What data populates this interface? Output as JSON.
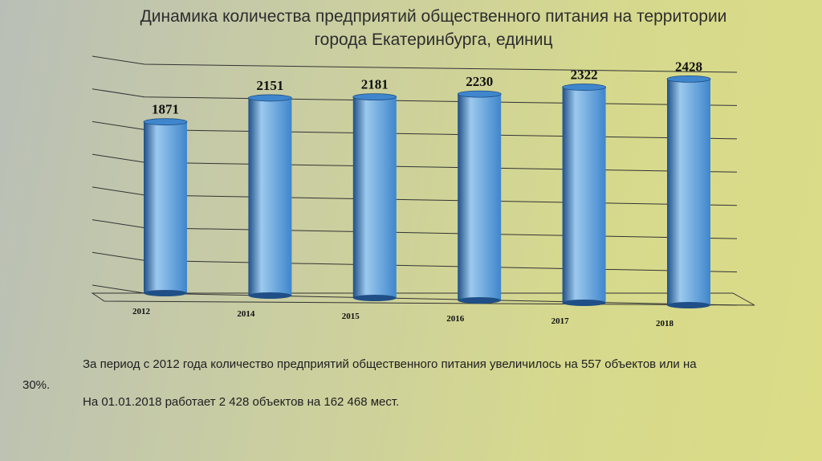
{
  "chart_data": {
    "type": "bar",
    "title_lines": [
      "Динамика количества предприятий общественного питания на территории",
      "города Екатеринбурга, единиц"
    ],
    "categories": [
      "2012",
      "2014",
      "2015",
      "2016",
      "2017",
      "2018"
    ],
    "values": [
      1871,
      2151,
      2181,
      2230,
      2322,
      2428
    ],
    "data_labels": [
      "1871",
      "2151",
      "2181",
      "2230",
      "2322",
      "2428"
    ],
    "ylim": [
      0,
      2500
    ],
    "grid": true,
    "xlabel": "",
    "ylabel": ""
  },
  "notes": {
    "line1": "За период с 2012 года количество предприятий общественного питания увеличилось на 557 объектов или на",
    "line2": "30%.",
    "line3": "На 01.01.2018 работает  2 428 объектов  на 162 468 мест."
  },
  "colors": {
    "bar_light": "#9cc9ee",
    "bar_mid": "#3f86cc",
    "bar_dark": "#1f4f86",
    "grid": "#333333"
  }
}
